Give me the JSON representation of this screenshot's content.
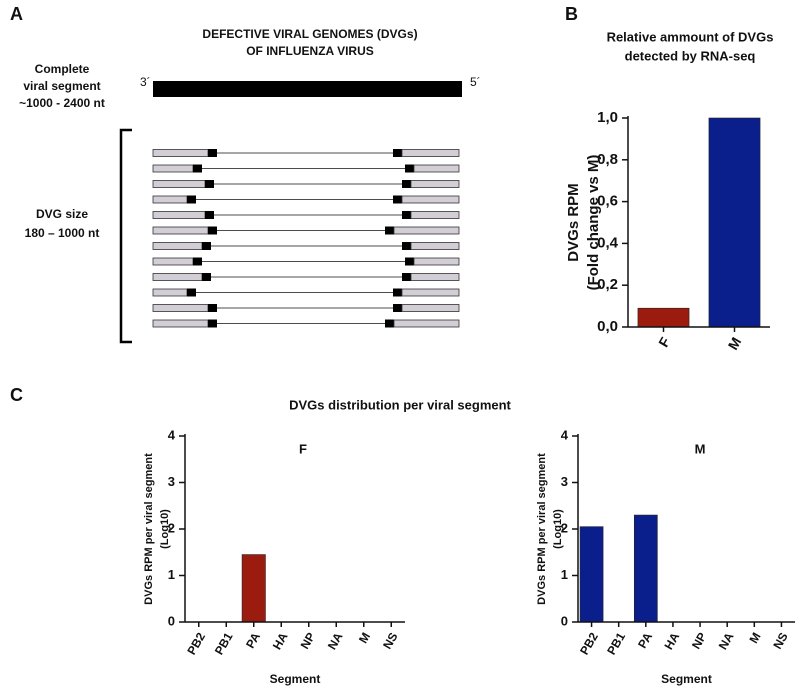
{
  "panel_labels": [
    "A",
    "B",
    "C"
  ],
  "diagram": {
    "title": [
      "DEFECTIVE VIRAL GENOMES  (DVGs)",
      "OF INFLUENZA VIRUS"
    ],
    "segment_label": [
      "Complete",
      "viral segment",
      "~1000 - 2400 nt"
    ],
    "three_prime": "3´",
    "five_prime": "5´",
    "dvg_label": [
      "DVG size",
      "180 – 1000 nt"
    ]
  },
  "section_title": "DVGs distribution per viral segment",
  "chart_data": [
    {
      "type": "bar",
      "title": [
        "Relative ammount of DVGs",
        "detected by RNA-seq"
      ],
      "y_label": [
        "DVGs RPM",
        "(Fold change vs M)"
      ],
      "categories": [
        "F",
        "M"
      ],
      "values": [
        0.09,
        1.0
      ],
      "colors": [
        "#9b1b0e",
        "#0b1f8c"
      ],
      "ylim": [
        0,
        1.0
      ],
      "yticks": [
        {
          "value": 0,
          "label": "0,0"
        },
        {
          "value": 0.2,
          "label": "0,2"
        },
        {
          "value": 0.4,
          "label": "0,4"
        },
        {
          "value": 0.6,
          "label": "0,6"
        },
        {
          "value": 0.8,
          "label": "0,8"
        },
        {
          "value": 1.0,
          "label": "1,0"
        }
      ]
    },
    {
      "type": "bar",
      "title": "F",
      "y_label": [
        "DVGs RPM per viral segment",
        "(Log10)"
      ],
      "x_label": "Segment",
      "categories": [
        "PB2",
        "PB1",
        "PA",
        "HA",
        "NP",
        "NA",
        "M",
        "NS"
      ],
      "values": [
        0,
        0,
        1.45,
        0,
        0,
        0,
        0,
        0
      ],
      "color": "#9b1b0e",
      "ylim": [
        0,
        4
      ],
      "yticks": [
        0,
        1,
        2,
        3,
        4
      ]
    },
    {
      "type": "bar",
      "title": "M",
      "y_label": [
        "DVGs RPM per viral segment",
        "(Log10)"
      ],
      "x_label": "Segment",
      "categories": [
        "PB2",
        "PB1",
        "PA",
        "HA",
        "NP",
        "NA",
        "M",
        "NS"
      ],
      "values": [
        2.05,
        0,
        2.3,
        0,
        0,
        0,
        0,
        0
      ],
      "color": "#0b1f8c",
      "ylim": [
        0,
        4
      ],
      "yticks": [
        0,
        1,
        2,
        3,
        4
      ]
    }
  ]
}
